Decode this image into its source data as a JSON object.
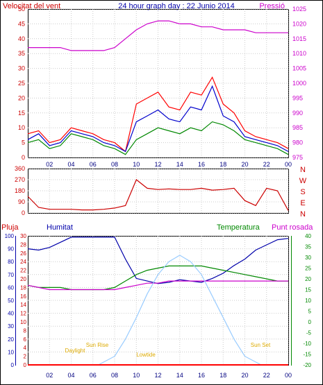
{
  "title": "24 hour graph day : 22 Junio 2014",
  "colors": {
    "wind": "#ff0000",
    "gust": "#0000cc",
    "dir": "#cc0000",
    "pressure": "#cc00cc",
    "humidity": "#0000aa",
    "temperature": "#008800",
    "dewpoint": "#cc00cc",
    "rain": "#ff0000",
    "solar": "#99ccff",
    "sunlabel": "#ddaa00",
    "grid": "#cccccc",
    "frame": "#000000"
  },
  "x_ticks": [
    "02",
    "04",
    "06",
    "08",
    "10",
    "12",
    "14",
    "16",
    "18",
    "20",
    "22",
    "00"
  ],
  "chart_data": [
    {
      "type": "line",
      "title": "",
      "ylabel_left": "Velocitat del vent",
      "ylabel_right": "Pressió",
      "x_range": [
        0,
        24
      ],
      "y_left_ticks": [
        0,
        5,
        10,
        15,
        20,
        25,
        30,
        35,
        40,
        45,
        50
      ],
      "y_left_range": [
        0,
        50
      ],
      "y_right_ticks": [
        975,
        980,
        985,
        990,
        995,
        1000,
        1005,
        1010,
        1015,
        1020,
        1025
      ],
      "y_right_range": [
        975,
        1025
      ],
      "series": [
        {
          "name": "",
          "key": "wind_speed",
          "axis": "left",
          "x": [
            0,
            1,
            2,
            3,
            4,
            5,
            6,
            7,
            8,
            9,
            10,
            11,
            12,
            13,
            14,
            15,
            16,
            17,
            18,
            19,
            20,
            21,
            22,
            23,
            24
          ],
          "values": [
            8,
            9,
            5,
            6,
            10,
            9,
            8,
            6,
            5,
            2,
            18,
            20,
            22,
            17,
            16,
            22,
            21,
            27,
            18,
            15,
            9,
            7,
            6,
            5,
            3
          ]
        },
        {
          "name": "",
          "key": "wind_gust",
          "axis": "left",
          "x": [
            0,
            1,
            2,
            3,
            4,
            5,
            6,
            7,
            8,
            9,
            10,
            11,
            12,
            13,
            14,
            15,
            16,
            17,
            18,
            19,
            20,
            21,
            22,
            23,
            24
          ],
          "values": [
            6,
            8,
            4,
            5,
            9,
            8,
            7,
            5,
            4,
            2,
            12,
            14,
            16,
            13,
            12,
            17,
            16,
            24,
            14,
            12,
            7,
            6,
            5,
            4,
            2
          ]
        },
        {
          "name": "",
          "key": "wind_avg",
          "axis": "left",
          "x": [
            0,
            1,
            2,
            3,
            4,
            5,
            6,
            7,
            8,
            9,
            10,
            11,
            12,
            13,
            14,
            15,
            16,
            17,
            18,
            19,
            20,
            21,
            22,
            23,
            24
          ],
          "values": [
            5,
            6,
            3,
            4,
            8,
            7,
            6,
            4,
            3,
            1,
            6,
            8,
            10,
            9,
            8,
            10,
            9,
            12,
            11,
            9,
            6,
            5,
            4,
            3,
            1
          ]
        },
        {
          "name": "",
          "key": "pressure",
          "axis": "right",
          "x": [
            0,
            1,
            2,
            3,
            4,
            5,
            6,
            7,
            8,
            9,
            10,
            11,
            12,
            13,
            14,
            15,
            16,
            17,
            18,
            19,
            20,
            21,
            22,
            23,
            24
          ],
          "values": [
            1012,
            1012,
            1012,
            1012,
            1011,
            1011,
            1011,
            1011,
            1012,
            1015,
            1018,
            1020,
            1021,
            1021,
            1020,
            1020,
            1019,
            1019,
            1018,
            1018,
            1018,
            1017,
            1017,
            1017,
            1017
          ]
        }
      ]
    },
    {
      "type": "line",
      "title": "",
      "x_range": [
        0,
        24
      ],
      "y_left_ticks": [
        0,
        90,
        180,
        270,
        360
      ],
      "y_left_range": [
        0,
        360
      ],
      "y_right_labels": [
        "N",
        "W",
        "S",
        "E",
        "N"
      ],
      "series": [
        {
          "name": "",
          "key": "wind_direction",
          "x": [
            0,
            1,
            2,
            3,
            4,
            5,
            6,
            7,
            8,
            9,
            10,
            11,
            12,
            13,
            14,
            15,
            16,
            17,
            18,
            19,
            20,
            21,
            22,
            23,
            24
          ],
          "values": [
            135,
            45,
            30,
            30,
            30,
            25,
            25,
            30,
            40,
            60,
            270,
            200,
            190,
            195,
            190,
            190,
            200,
            185,
            190,
            200,
            100,
            60,
            200,
            180,
            20
          ]
        }
      ]
    },
    {
      "type": "line",
      "title": "",
      "ylabel_left_outer": "Pluja",
      "ylabel_left_inner": "Humitat",
      "ylabel_right_1": "Temperatura",
      "ylabel_right_2": "Punt rosada",
      "x_range": [
        0,
        24
      ],
      "y_rain_ticks": [
        0,
        2,
        4,
        6,
        8,
        10,
        12,
        14,
        16,
        18,
        20,
        22,
        24,
        26,
        28,
        30
      ],
      "y_rain_range": [
        0,
        30
      ],
      "y_hum_ticks": [
        0,
        10,
        20,
        30,
        40,
        50,
        60,
        70,
        80,
        90,
        100
      ],
      "y_hum_range": [
        0,
        100
      ],
      "y_temp_ticks": [
        -20,
        -15,
        -10,
        -5,
        0,
        5,
        10,
        15,
        20,
        25,
        30,
        35,
        40
      ],
      "y_temp_range": [
        -20,
        40
      ],
      "sun_labels": [
        "Sun Rise",
        "Sun Set",
        "Daylight",
        "Lowtide"
      ],
      "series": [
        {
          "name": "",
          "key": "humidity",
          "axis": "hum",
          "x": [
            0,
            1,
            2,
            3,
            4,
            5,
            6,
            7,
            8,
            9,
            10,
            11,
            12,
            13,
            14,
            15,
            16,
            17,
            18,
            19,
            20,
            21,
            22,
            23,
            24
          ],
          "values": [
            90,
            89,
            91,
            95,
            99,
            99,
            99,
            99,
            99,
            82,
            67,
            65,
            63,
            64,
            66,
            65,
            64,
            67,
            71,
            77,
            82,
            89,
            93,
            97,
            98
          ]
        },
        {
          "name": "",
          "key": "temperature",
          "axis": "temp",
          "x": [
            0,
            1,
            2,
            3,
            4,
            5,
            6,
            7,
            8,
            9,
            10,
            11,
            12,
            13,
            14,
            15,
            16,
            17,
            18,
            19,
            20,
            21,
            22,
            23,
            24
          ],
          "values": [
            17,
            16,
            16,
            16,
            15,
            15,
            15,
            15,
            16,
            19,
            22,
            24,
            25,
            26,
            26,
            26,
            26,
            25,
            24,
            23,
            22,
            21,
            20,
            19,
            19
          ]
        },
        {
          "name": "",
          "key": "dewpoint",
          "axis": "temp",
          "x": [
            0,
            1,
            2,
            3,
            4,
            5,
            6,
            7,
            8,
            9,
            10,
            11,
            12,
            13,
            14,
            15,
            16,
            17,
            18,
            19,
            20,
            21,
            22,
            23,
            24
          ],
          "values": [
            17,
            16,
            15,
            15,
            15,
            15,
            15,
            15,
            15,
            16,
            17,
            18,
            18,
            19,
            19,
            19,
            19,
            19,
            19,
            19,
            19,
            19,
            19,
            19,
            19
          ]
        },
        {
          "name": "",
          "key": "solar",
          "axis": "temp",
          "x": [
            6.5,
            8,
            9,
            10,
            11,
            12,
            13,
            14,
            15,
            16,
            17,
            18,
            19,
            20,
            21.5
          ],
          "values": [
            -20,
            -16,
            -8,
            2,
            13,
            22,
            28,
            31,
            28,
            22,
            12,
            2,
            -8,
            -16,
            -20
          ]
        },
        {
          "name": "",
          "key": "rain",
          "axis": "rain",
          "x": [
            0,
            24
          ],
          "values": [
            0,
            0
          ]
        }
      ]
    }
  ]
}
